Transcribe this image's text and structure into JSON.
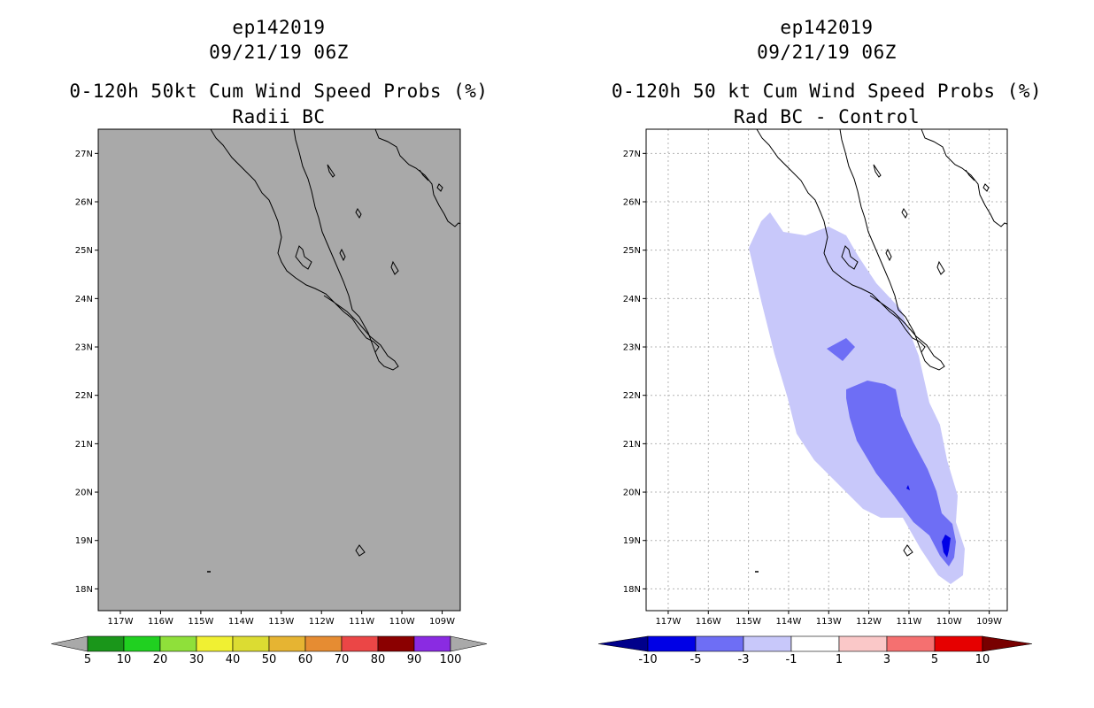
{
  "left_panel": {
    "title_line1": "ep142019",
    "title_line2": "09/21/19 06Z",
    "title_line3": "0-120h 50kt Cum Wind Speed Probs (%)",
    "title_line4": "Radii BC",
    "background_color": "#a9a9a9",
    "colorbar": {
      "labels": [
        "5",
        "10",
        "20",
        "30",
        "40",
        "50",
        "60",
        "70",
        "80",
        "90",
        "100"
      ],
      "colors": [
        "#1a961a",
        "#20d020",
        "#8fe03a",
        "#f0f032",
        "#dcdc32",
        "#e6b432",
        "#e68c32",
        "#eb4646",
        "#8b0000",
        "#8a2be2"
      ],
      "end_color": "#a9a9a9"
    }
  },
  "right_panel": {
    "title_line1": "ep142019",
    "title_line2": "09/21/19 06Z",
    "title_line3": "0-120h 50 kt Cum Wind Speed Probs (%)",
    "title_line4": "Rad BC - Control",
    "colorbar": {
      "labels": [
        "-10",
        "-5",
        "-3",
        "-1",
        "1",
        "3",
        "5",
        "10"
      ],
      "colors": [
        "#0000e6",
        "#6e6ef5",
        "#c8c8fa",
        "#ffffff",
        "#fac8c8",
        "#f57070",
        "#e60000"
      ],
      "low_end_color": "#00008b",
      "high_end_color": "#780000"
    },
    "contour_colors": {
      "light": "#c8c8fa",
      "medium": "#6e6ef5",
      "dark": "#0000e6"
    }
  },
  "axes": {
    "lat_labels": [
      "27N",
      "26N",
      "25N",
      "24N",
      "23N",
      "22N",
      "21N",
      "20N",
      "19N",
      "18N"
    ],
    "lat_values": [
      27,
      26,
      25,
      24,
      23,
      22,
      21,
      20,
      19,
      18
    ],
    "lon_labels": [
      "117W",
      "116W",
      "115W",
      "114W",
      "113W",
      "112W",
      "111W",
      "110W",
      "109W"
    ],
    "lon_values": [
      -117,
      -116,
      -115,
      -114,
      -113,
      -112,
      -111,
      -110,
      -109
    ],
    "lat_range": [
      17.55,
      27.5
    ],
    "lon_range": [
      -117.55,
      -108.55
    ]
  }
}
